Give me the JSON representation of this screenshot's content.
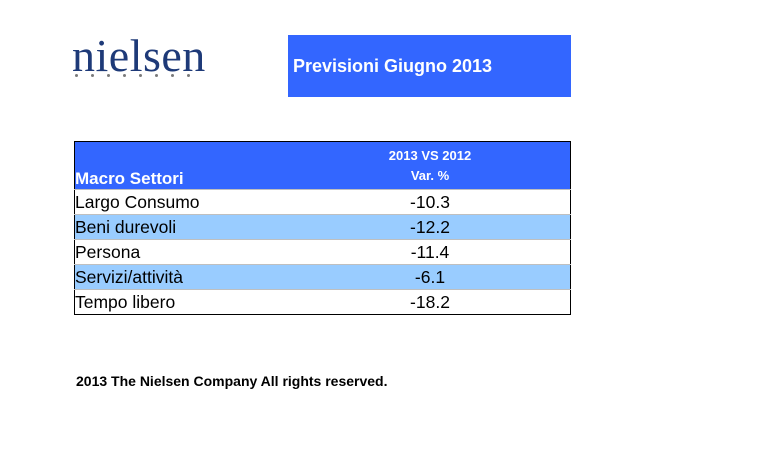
{
  "logo": {
    "text": "nielsen",
    "color": "#1e3a78"
  },
  "title": "Previsioni Giugno 2013",
  "table": {
    "header_label": "Macro Settori",
    "header_value_line1": "2013 VS 2012",
    "header_value_line2": "Var. %",
    "header_color": "#3366ff",
    "alt_row_color": "#99ccff",
    "rows": [
      {
        "label": "Largo Consumo",
        "value": "-10.3"
      },
      {
        "label": "Beni durevoli",
        "value": "-12.2"
      },
      {
        "label": "Persona",
        "value": "-11.4"
      },
      {
        "label": "Servizi/attività",
        "value": "-6.1"
      },
      {
        "label": "Tempo libero",
        "value": "-18.2"
      }
    ]
  },
  "footer": "2013 The Nielsen Company All rights reserved."
}
